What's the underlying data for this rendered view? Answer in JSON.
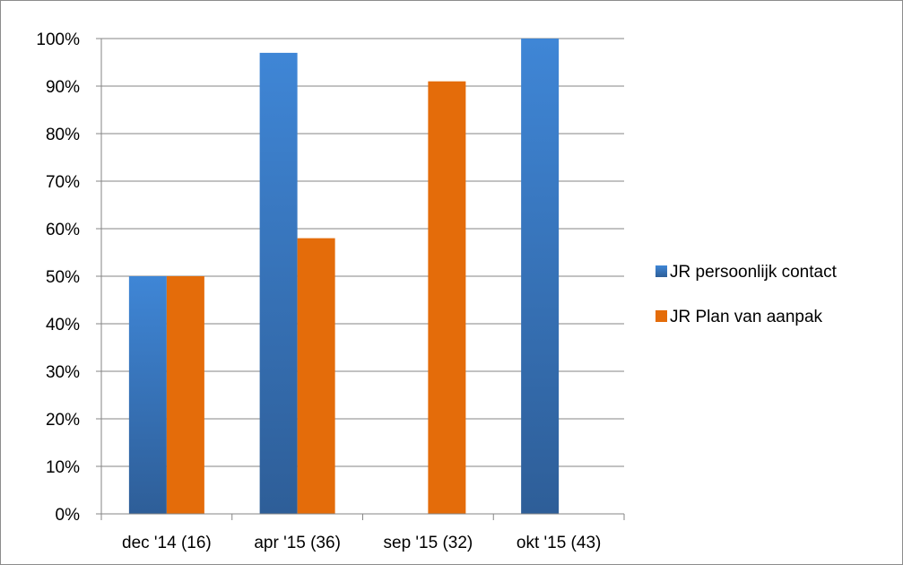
{
  "chart_data": {
    "type": "bar",
    "categories": [
      "dec '14 (16)",
      "apr '15 (36)",
      "sep '15 (32)",
      "okt '15 (43)"
    ],
    "series": [
      {
        "name": "JR persoonlijk contact",
        "values": [
          50,
          97,
          null,
          100
        ],
        "color": "#3a78c6"
      },
      {
        "name": "JR Plan van aanpak",
        "values": [
          50,
          58,
          91,
          null
        ],
        "color": "#e46c0a"
      }
    ],
    "title": "",
    "xlabel": "",
    "ylabel": "",
    "ylim": [
      0,
      100
    ],
    "y_ticks": [
      "0%",
      "10%",
      "20%",
      "30%",
      "40%",
      "50%",
      "60%",
      "70%",
      "80%",
      "90%",
      "100%"
    ],
    "grid": true,
    "legend_position": "right"
  }
}
